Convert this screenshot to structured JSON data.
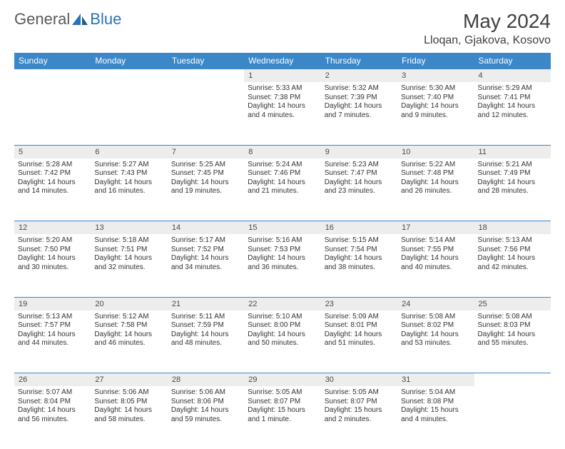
{
  "brand": {
    "general": "General",
    "blue": "Blue"
  },
  "title": "May 2024",
  "location": "Lloqan, Gjakova, Kosovo",
  "colors": {
    "header_bg": "#3b87c8",
    "header_text": "#ffffff",
    "daynum_bg": "#ededed",
    "border": "#3b87c8",
    "logo_gray": "#5a5a5a",
    "logo_blue": "#2b72b8",
    "title_color": "#404040",
    "cell_text": "#333333",
    "page_bg": "#ffffff"
  },
  "daysOfWeek": [
    "Sunday",
    "Monday",
    "Tuesday",
    "Wednesday",
    "Thursday",
    "Friday",
    "Saturday"
  ],
  "weeks": [
    [
      null,
      null,
      null,
      {
        "n": "1",
        "sr": "5:33 AM",
        "ss": "7:38 PM",
        "dl": "14 hours and 4 minutes."
      },
      {
        "n": "2",
        "sr": "5:32 AM",
        "ss": "7:39 PM",
        "dl": "14 hours and 7 minutes."
      },
      {
        "n": "3",
        "sr": "5:30 AM",
        "ss": "7:40 PM",
        "dl": "14 hours and 9 minutes."
      },
      {
        "n": "4",
        "sr": "5:29 AM",
        "ss": "7:41 PM",
        "dl": "14 hours and 12 minutes."
      }
    ],
    [
      {
        "n": "5",
        "sr": "5:28 AM",
        "ss": "7:42 PM",
        "dl": "14 hours and 14 minutes."
      },
      {
        "n": "6",
        "sr": "5:27 AM",
        "ss": "7:43 PM",
        "dl": "14 hours and 16 minutes."
      },
      {
        "n": "7",
        "sr": "5:25 AM",
        "ss": "7:45 PM",
        "dl": "14 hours and 19 minutes."
      },
      {
        "n": "8",
        "sr": "5:24 AM",
        "ss": "7:46 PM",
        "dl": "14 hours and 21 minutes."
      },
      {
        "n": "9",
        "sr": "5:23 AM",
        "ss": "7:47 PM",
        "dl": "14 hours and 23 minutes."
      },
      {
        "n": "10",
        "sr": "5:22 AM",
        "ss": "7:48 PM",
        "dl": "14 hours and 26 minutes."
      },
      {
        "n": "11",
        "sr": "5:21 AM",
        "ss": "7:49 PM",
        "dl": "14 hours and 28 minutes."
      }
    ],
    [
      {
        "n": "12",
        "sr": "5:20 AM",
        "ss": "7:50 PM",
        "dl": "14 hours and 30 minutes."
      },
      {
        "n": "13",
        "sr": "5:18 AM",
        "ss": "7:51 PM",
        "dl": "14 hours and 32 minutes."
      },
      {
        "n": "14",
        "sr": "5:17 AM",
        "ss": "7:52 PM",
        "dl": "14 hours and 34 minutes."
      },
      {
        "n": "15",
        "sr": "5:16 AM",
        "ss": "7:53 PM",
        "dl": "14 hours and 36 minutes."
      },
      {
        "n": "16",
        "sr": "5:15 AM",
        "ss": "7:54 PM",
        "dl": "14 hours and 38 minutes."
      },
      {
        "n": "17",
        "sr": "5:14 AM",
        "ss": "7:55 PM",
        "dl": "14 hours and 40 minutes."
      },
      {
        "n": "18",
        "sr": "5:13 AM",
        "ss": "7:56 PM",
        "dl": "14 hours and 42 minutes."
      }
    ],
    [
      {
        "n": "19",
        "sr": "5:13 AM",
        "ss": "7:57 PM",
        "dl": "14 hours and 44 minutes."
      },
      {
        "n": "20",
        "sr": "5:12 AM",
        "ss": "7:58 PM",
        "dl": "14 hours and 46 minutes."
      },
      {
        "n": "21",
        "sr": "5:11 AM",
        "ss": "7:59 PM",
        "dl": "14 hours and 48 minutes."
      },
      {
        "n": "22",
        "sr": "5:10 AM",
        "ss": "8:00 PM",
        "dl": "14 hours and 50 minutes."
      },
      {
        "n": "23",
        "sr": "5:09 AM",
        "ss": "8:01 PM",
        "dl": "14 hours and 51 minutes."
      },
      {
        "n": "24",
        "sr": "5:08 AM",
        "ss": "8:02 PM",
        "dl": "14 hours and 53 minutes."
      },
      {
        "n": "25",
        "sr": "5:08 AM",
        "ss": "8:03 PM",
        "dl": "14 hours and 55 minutes."
      }
    ],
    [
      {
        "n": "26",
        "sr": "5:07 AM",
        "ss": "8:04 PM",
        "dl": "14 hours and 56 minutes."
      },
      {
        "n": "27",
        "sr": "5:06 AM",
        "ss": "8:05 PM",
        "dl": "14 hours and 58 minutes."
      },
      {
        "n": "28",
        "sr": "5:06 AM",
        "ss": "8:06 PM",
        "dl": "14 hours and 59 minutes."
      },
      {
        "n": "29",
        "sr": "5:05 AM",
        "ss": "8:07 PM",
        "dl": "15 hours and 1 minute."
      },
      {
        "n": "30",
        "sr": "5:05 AM",
        "ss": "8:07 PM",
        "dl": "15 hours and 2 minutes."
      },
      {
        "n": "31",
        "sr": "5:04 AM",
        "ss": "8:08 PM",
        "dl": "15 hours and 4 minutes."
      },
      null
    ]
  ],
  "labels": {
    "sunrise": "Sunrise:",
    "sunset": "Sunset:",
    "daylight": "Daylight:"
  }
}
